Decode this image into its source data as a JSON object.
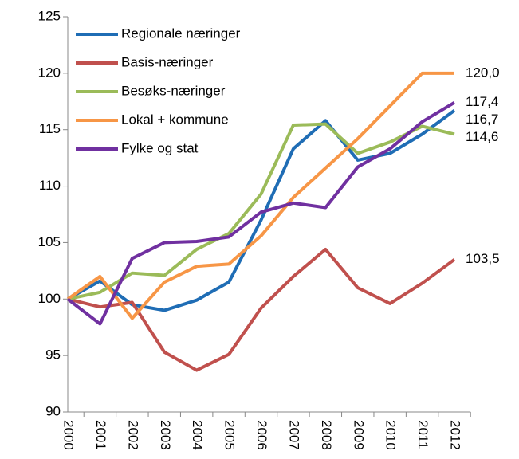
{
  "chart_data": {
    "type": "line",
    "categories": [
      "2000",
      "2001",
      "2002",
      "2003",
      "2004",
      "2005",
      "2006",
      "2007",
      "2008",
      "2009",
      "2010",
      "2011",
      "2012"
    ],
    "series": [
      {
        "name": "Regionale næringer",
        "color": "#1f6db5",
        "values": [
          100,
          101.6,
          99.5,
          99.0,
          99.9,
          101.5,
          107.0,
          113.3,
          115.8,
          112.3,
          112.9,
          114.6,
          116.7
        ],
        "value_labels": [
          null,
          null,
          null,
          null,
          null,
          null,
          null,
          null,
          null,
          null,
          null,
          null,
          "116,7"
        ]
      },
      {
        "name": "Basis-næringer",
        "color": "#c0504d",
        "values": [
          100,
          99.3,
          99.7,
          95.3,
          93.7,
          95.1,
          99.2,
          102.0,
          104.4,
          101.0,
          99.6,
          101.4,
          103.5
        ],
        "value_labels": [
          null,
          null,
          null,
          null,
          null,
          null,
          null,
          null,
          null,
          null,
          null,
          null,
          "103,5"
        ]
      },
      {
        "name": "Besøks-næringer",
        "color": "#9bbb59",
        "values": [
          100,
          100.6,
          102.3,
          102.1,
          104.4,
          105.8,
          109.3,
          115.4,
          115.5,
          112.9,
          113.9,
          115.3,
          114.6
        ],
        "value_labels": [
          null,
          null,
          null,
          null,
          null,
          null,
          null,
          null,
          null,
          null,
          null,
          null,
          "114,6"
        ]
      },
      {
        "name": "Lokal + kommune",
        "color": "#f79646",
        "values": [
          100,
          102.0,
          98.3,
          101.5,
          102.9,
          103.1,
          105.6,
          109.0,
          111.6,
          114.2,
          117.1,
          120.0,
          120.0
        ],
        "value_labels": [
          null,
          null,
          null,
          null,
          null,
          null,
          null,
          null,
          null,
          null,
          null,
          null,
          "120,0"
        ]
      },
      {
        "name": "Fylke og stat",
        "color": "#7030a0",
        "values": [
          100,
          97.8,
          103.6,
          105.0,
          105.1,
          105.5,
          107.7,
          108.5,
          108.1,
          111.7,
          113.3,
          115.7,
          117.4
        ],
        "value_labels": [
          null,
          null,
          null,
          null,
          null,
          null,
          null,
          null,
          null,
          null,
          null,
          null,
          "117,4"
        ]
      }
    ],
    "ylim": [
      90,
      125
    ],
    "yticks": [
      90,
      95,
      100,
      105,
      110,
      115,
      120,
      125
    ],
    "legend": "upper left"
  }
}
